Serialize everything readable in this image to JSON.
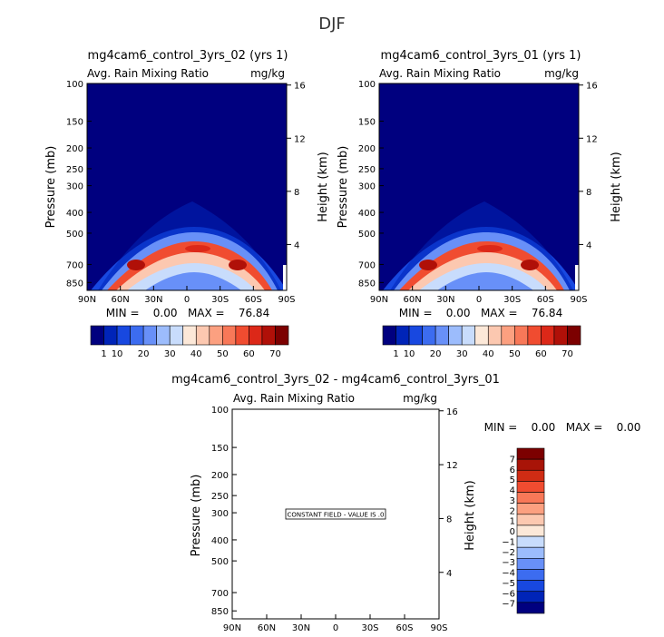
{
  "figure_title": "DJF",
  "chart_data": [
    {
      "type": "contour",
      "title": "mg4cam6_control_3yrs_02 (yrs 1)",
      "left_string": "Avg. Rain Mixing Ratio",
      "right_string": "mg/kg",
      "xlabel": "",
      "ylabel": "Pressure (mb)",
      "ylabel_right": "Height (km)",
      "x_ticks": [
        "90N",
        "60N",
        "30N",
        "0",
        "30S",
        "60S",
        "90S"
      ],
      "y_ticks": [
        "100",
        "150",
        "200",
        "250",
        "300",
        "400",
        "500",
        "700",
        "850"
      ],
      "y_right_ticks": [
        "16",
        "12",
        "8",
        "4"
      ],
      "min_max_text": "MIN =    0.00   MAX =    76.84",
      "min": 0.0,
      "max": 76.84,
      "colorbar_labels": [
        "1",
        "10",
        "20",
        "30",
        "40",
        "50",
        "60",
        "70"
      ]
    },
    {
      "type": "contour",
      "title": "mg4cam6_control_3yrs_01 (yrs 1)",
      "left_string": "Avg. Rain Mixing Ratio",
      "right_string": "mg/kg",
      "xlabel": "",
      "ylabel": "Pressure (mb)",
      "ylabel_right": "Height (km)",
      "x_ticks": [
        "90N",
        "60N",
        "30N",
        "0",
        "30S",
        "60S",
        "90S"
      ],
      "y_ticks": [
        "100",
        "150",
        "200",
        "250",
        "300",
        "400",
        "500",
        "700",
        "850"
      ],
      "y_right_ticks": [
        "16",
        "12",
        "8",
        "4"
      ],
      "min_max_text": "MIN =    0.00   MAX =    76.84",
      "min": 0.0,
      "max": 76.84,
      "colorbar_labels": [
        "1",
        "10",
        "20",
        "30",
        "40",
        "50",
        "60",
        "70"
      ]
    },
    {
      "type": "contour",
      "title": "mg4cam6_control_3yrs_02 - mg4cam6_control_3yrs_01",
      "left_string": "Avg. Rain Mixing Ratio",
      "right_string": "mg/kg",
      "xlabel": "",
      "ylabel": "Pressure (mb)",
      "ylabel_right": "Height (km)",
      "x_ticks": [
        "90N",
        "60N",
        "30N",
        "0",
        "30S",
        "60S",
        "90S"
      ],
      "y_ticks": [
        "100",
        "150",
        "200",
        "250",
        "300",
        "400",
        "500",
        "700",
        "850"
      ],
      "y_right_ticks": [
        "16",
        "12",
        "8",
        "4"
      ],
      "min_max_text": "MIN =    0.00   MAX =    0.00",
      "min": 0.0,
      "max": 0.0,
      "annotation": "CONSTANT FIELD - VALUE IS .0",
      "colorbar_labels": [
        "7",
        "6",
        "5",
        "4",
        "3",
        "2",
        "1",
        "0",
        "−1",
        "−2",
        "−3",
        "−4",
        "−5",
        "−6",
        "−7"
      ]
    }
  ],
  "colors": {
    "field_colors": [
      "#00007f",
      "#0024b8",
      "#1848e0",
      "#3c6cf0",
      "#6890f8",
      "#9cbcfc",
      "#c8dcfc",
      "#fce8d8",
      "#fcc8b0",
      "#fca080",
      "#f87858",
      "#f04c30",
      "#dc2818",
      "#b01008",
      "#7c0000"
    ],
    "diff_colors": [
      "#7c0000",
      "#a81408",
      "#d02c14",
      "#f04c30",
      "#f87858",
      "#fca080",
      "#fcc8b0",
      "#fce8d8",
      "#c8dcfc",
      "#9cbcfc",
      "#6890f8",
      "#3c6cf0",
      "#1848e0",
      "#0024b8",
      "#00007f"
    ]
  }
}
